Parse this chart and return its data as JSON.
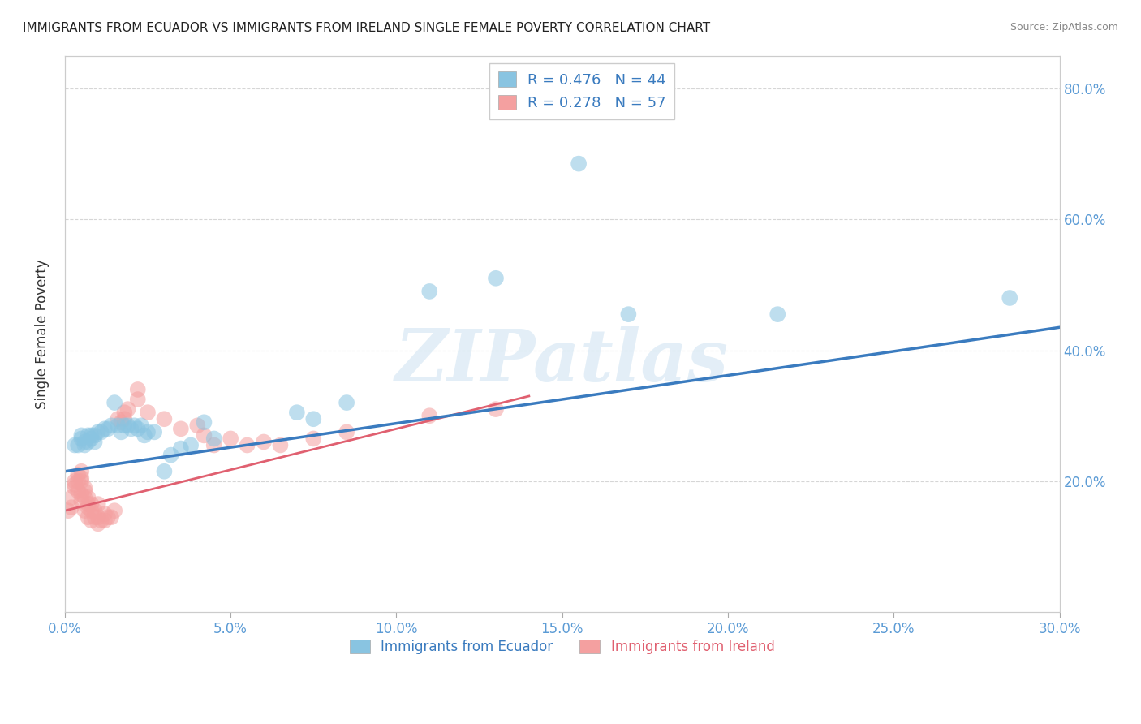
{
  "title": "IMMIGRANTS FROM ECUADOR VS IMMIGRANTS FROM IRELAND SINGLE FEMALE POVERTY CORRELATION CHART",
  "source": "Source: ZipAtlas.com",
  "ylabel": "Single Female Poverty",
  "ecuador_color": "#89c4e1",
  "ireland_color": "#f4a0a0",
  "ecuador_line_color": "#3a7bbf",
  "ireland_line_color": "#e06070",
  "watermark": "ZIPatlas",
  "ecuador_scatter": [
    [
      0.003,
      0.255
    ],
    [
      0.004,
      0.255
    ],
    [
      0.005,
      0.265
    ],
    [
      0.005,
      0.27
    ],
    [
      0.006,
      0.255
    ],
    [
      0.006,
      0.26
    ],
    [
      0.007,
      0.26
    ],
    [
      0.007,
      0.27
    ],
    [
      0.008,
      0.265
    ],
    [
      0.008,
      0.27
    ],
    [
      0.009,
      0.27
    ],
    [
      0.009,
      0.26
    ],
    [
      0.01,
      0.275
    ],
    [
      0.011,
      0.275
    ],
    [
      0.012,
      0.28
    ],
    [
      0.013,
      0.28
    ],
    [
      0.014,
      0.285
    ],
    [
      0.015,
      0.32
    ],
    [
      0.016,
      0.285
    ],
    [
      0.017,
      0.275
    ],
    [
      0.018,
      0.285
    ],
    [
      0.019,
      0.285
    ],
    [
      0.02,
      0.28
    ],
    [
      0.021,
      0.285
    ],
    [
      0.022,
      0.28
    ],
    [
      0.023,
      0.285
    ],
    [
      0.024,
      0.27
    ],
    [
      0.025,
      0.275
    ],
    [
      0.027,
      0.275
    ],
    [
      0.03,
      0.215
    ],
    [
      0.032,
      0.24
    ],
    [
      0.035,
      0.25
    ],
    [
      0.038,
      0.255
    ],
    [
      0.042,
      0.29
    ],
    [
      0.045,
      0.265
    ],
    [
      0.07,
      0.305
    ],
    [
      0.075,
      0.295
    ],
    [
      0.085,
      0.32
    ],
    [
      0.11,
      0.49
    ],
    [
      0.13,
      0.51
    ],
    [
      0.155,
      0.685
    ],
    [
      0.17,
      0.455
    ],
    [
      0.215,
      0.455
    ],
    [
      0.285,
      0.48
    ]
  ],
  "ireland_scatter": [
    [
      0.001,
      0.155
    ],
    [
      0.002,
      0.16
    ],
    [
      0.002,
      0.175
    ],
    [
      0.003,
      0.19
    ],
    [
      0.003,
      0.2
    ],
    [
      0.003,
      0.195
    ],
    [
      0.004,
      0.2
    ],
    [
      0.004,
      0.21
    ],
    [
      0.004,
      0.185
    ],
    [
      0.005,
      0.215
    ],
    [
      0.005,
      0.205
    ],
    [
      0.005,
      0.2
    ],
    [
      0.005,
      0.18
    ],
    [
      0.005,
      0.17
    ],
    [
      0.006,
      0.175
    ],
    [
      0.006,
      0.185
    ],
    [
      0.006,
      0.19
    ],
    [
      0.006,
      0.155
    ],
    [
      0.007,
      0.165
    ],
    [
      0.007,
      0.175
    ],
    [
      0.007,
      0.16
    ],
    [
      0.007,
      0.145
    ],
    [
      0.008,
      0.155
    ],
    [
      0.008,
      0.165
    ],
    [
      0.008,
      0.14
    ],
    [
      0.009,
      0.145
    ],
    [
      0.009,
      0.155
    ],
    [
      0.01,
      0.165
    ],
    [
      0.01,
      0.145
    ],
    [
      0.01,
      0.135
    ],
    [
      0.011,
      0.14
    ],
    [
      0.012,
      0.15
    ],
    [
      0.012,
      0.14
    ],
    [
      0.013,
      0.145
    ],
    [
      0.014,
      0.145
    ],
    [
      0.015,
      0.155
    ],
    [
      0.016,
      0.295
    ],
    [
      0.017,
      0.29
    ],
    [
      0.018,
      0.295
    ],
    [
      0.018,
      0.305
    ],
    [
      0.019,
      0.31
    ],
    [
      0.022,
      0.325
    ],
    [
      0.022,
      0.34
    ],
    [
      0.025,
      0.305
    ],
    [
      0.03,
      0.295
    ],
    [
      0.035,
      0.28
    ],
    [
      0.04,
      0.285
    ],
    [
      0.042,
      0.27
    ],
    [
      0.045,
      0.255
    ],
    [
      0.05,
      0.265
    ],
    [
      0.055,
      0.255
    ],
    [
      0.06,
      0.26
    ],
    [
      0.065,
      0.255
    ],
    [
      0.075,
      0.265
    ],
    [
      0.085,
      0.275
    ],
    [
      0.11,
      0.3
    ],
    [
      0.13,
      0.31
    ]
  ],
  "xlim": [
    0.0,
    0.3
  ],
  "ylim": [
    0.0,
    0.85
  ],
  "ecuador_trend_x": [
    0.0,
    0.3
  ],
  "ecuador_trend_y": [
    0.215,
    0.435
  ],
  "ireland_trend_x": [
    0.0,
    0.14
  ],
  "ireland_trend_y": [
    0.155,
    0.33
  ]
}
